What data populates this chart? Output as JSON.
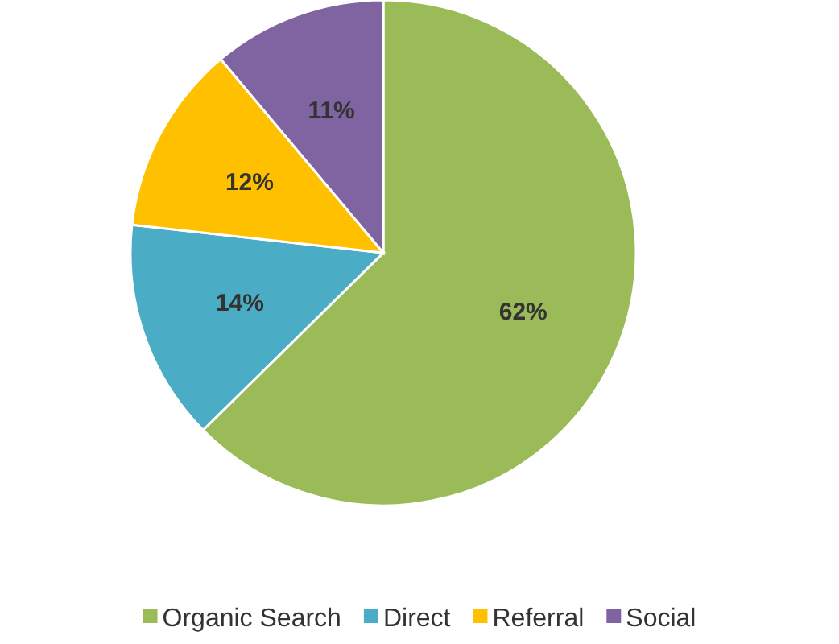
{
  "chart_data": {
    "type": "pie",
    "categories": [
      "Organic Search",
      "Direct",
      "Referral",
      "Social"
    ],
    "values": [
      62,
      14,
      12,
      11
    ],
    "colors": [
      "#9bbb59",
      "#4bacc6",
      "#ffc000",
      "#8064a2"
    ],
    "value_labels": [
      "62%",
      "14%",
      "12%",
      "11%"
    ],
    "legend": "bottom"
  }
}
